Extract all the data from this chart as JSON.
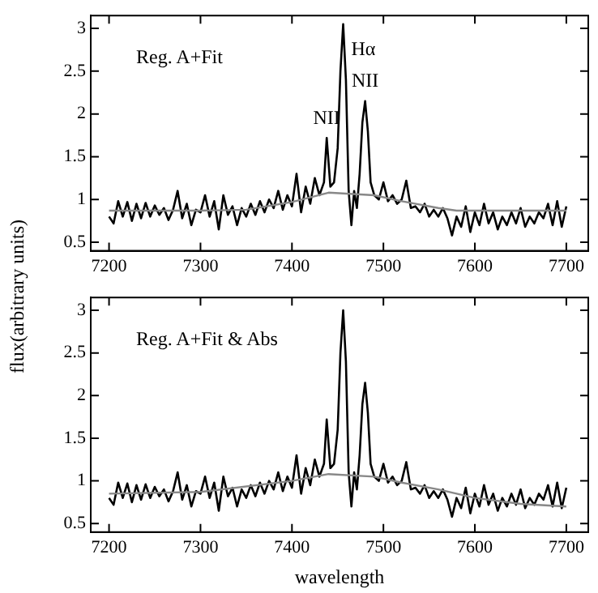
{
  "chart_data": [
    {
      "type": "line",
      "ylabel": "flux(arbitrary units)",
      "annotations": [
        "Reg. A+Fit",
        {
          "text": "Hα",
          "x": 7456,
          "y": 3.05
        },
        {
          "text": "NII",
          "x": 7438,
          "y": 1.72
        },
        {
          "text": "NII",
          "x": 7480,
          "y": 2.15
        }
      ],
      "xlim": [
        7180,
        7724
      ],
      "xticks": [
        7200,
        7300,
        7400,
        7500,
        7600,
        7700
      ],
      "ylim": [
        0.4,
        3.15
      ],
      "yticks": [
        0.5,
        1,
        1.5,
        2,
        2.5,
        3
      ],
      "grid": false,
      "legend": false,
      "marker": "none",
      "line_style": "solid",
      "series": [
        {
          "color": "#000000",
          "x": [
            7200,
            7205,
            7210,
            7215,
            7220,
            7225,
            7230,
            7235,
            7240,
            7245,
            7250,
            7255,
            7260,
            7265,
            7270,
            7275,
            7280,
            7285,
            7290,
            7295,
            7300,
            7305,
            7310,
            7315,
            7320,
            7325,
            7330,
            7335,
            7340,
            7345,
            7350,
            7355,
            7360,
            7365,
            7370,
            7375,
            7380,
            7385,
            7390,
            7395,
            7400,
            7405,
            7410,
            7415,
            7420,
            7425,
            7430,
            7435,
            7438,
            7442,
            7446,
            7450,
            7453,
            7456,
            7459,
            7462,
            7465,
            7468,
            7471,
            7474,
            7477,
            7480,
            7483,
            7486,
            7490,
            7495,
            7500,
            7505,
            7510,
            7515,
            7520,
            7525,
            7530,
            7535,
            7540,
            7545,
            7550,
            7555,
            7560,
            7565,
            7570,
            7575,
            7580,
            7585,
            7590,
            7595,
            7600,
            7605,
            7610,
            7615,
            7620,
            7625,
            7630,
            7635,
            7640,
            7645,
            7650,
            7655,
            7660,
            7665,
            7670,
            7675,
            7680,
            7685,
            7690,
            7695,
            7700
          ],
          "values": [
            0.8,
            0.72,
            0.98,
            0.8,
            0.97,
            0.75,
            0.95,
            0.78,
            0.96,
            0.8,
            0.93,
            0.82,
            0.9,
            0.76,
            0.88,
            1.1,
            0.78,
            0.95,
            0.7,
            0.88,
            0.85,
            1.05,
            0.8,
            0.98,
            0.65,
            1.05,
            0.82,
            0.92,
            0.7,
            0.9,
            0.8,
            0.95,
            0.82,
            0.98,
            0.85,
            1.0,
            0.9,
            1.1,
            0.88,
            1.05,
            0.92,
            1.3,
            0.85,
            1.15,
            0.95,
            1.25,
            1.05,
            1.2,
            1.72,
            1.15,
            1.2,
            1.6,
            2.5,
            3.05,
            2.4,
            1.1,
            0.7,
            1.1,
            0.9,
            1.3,
            1.9,
            2.15,
            1.8,
            1.2,
            1.05,
            1.0,
            1.2,
            0.98,
            1.05,
            0.95,
            1.0,
            1.22,
            0.9,
            0.92,
            0.85,
            0.95,
            0.8,
            0.88,
            0.8,
            0.9,
            0.78,
            0.58,
            0.8,
            0.68,
            0.92,
            0.62,
            0.85,
            0.7,
            0.95,
            0.72,
            0.85,
            0.65,
            0.8,
            0.7,
            0.85,
            0.72,
            0.9,
            0.68,
            0.8,
            0.72,
            0.85,
            0.78,
            0.95,
            0.7,
            0.98,
            0.68,
            0.92
          ]
        },
        {
          "color": "#888888",
          "x": [
            7200,
            7300,
            7350,
            7400,
            7440,
            7490,
            7520,
            7560,
            7580,
            7700
          ],
          "values": [
            0.87,
            0.87,
            0.88,
            0.97,
            1.08,
            1.05,
            0.98,
            0.9,
            0.87,
            0.87
          ]
        }
      ]
    },
    {
      "type": "line",
      "xlabel": "wavelength",
      "annotations": [
        "Reg. A+Fit & Abs"
      ],
      "xlim": [
        7180,
        7724
      ],
      "xticks": [
        7200,
        7300,
        7400,
        7500,
        7600,
        7700
      ],
      "ylim": [
        0.4,
        3.15
      ],
      "yticks": [
        0.5,
        1,
        1.5,
        2,
        2.5,
        3
      ],
      "grid": false,
      "legend": false,
      "marker": "none",
      "line_style": "solid",
      "series": [
        {
          "color": "#000000",
          "x": [
            7200,
            7205,
            7210,
            7215,
            7220,
            7225,
            7230,
            7235,
            7240,
            7245,
            7250,
            7255,
            7260,
            7265,
            7270,
            7275,
            7280,
            7285,
            7290,
            7295,
            7300,
            7305,
            7310,
            7315,
            7320,
            7325,
            7330,
            7335,
            7340,
            7345,
            7350,
            7355,
            7360,
            7365,
            7370,
            7375,
            7380,
            7385,
            7390,
            7395,
            7400,
            7405,
            7410,
            7415,
            7420,
            7425,
            7430,
            7435,
            7438,
            7442,
            7446,
            7450,
            7453,
            7456,
            7459,
            7462,
            7465,
            7468,
            7471,
            7474,
            7477,
            7480,
            7483,
            7486,
            7490,
            7495,
            7500,
            7505,
            7510,
            7515,
            7520,
            7525,
            7530,
            7535,
            7540,
            7545,
            7550,
            7555,
            7560,
            7565,
            7570,
            7575,
            7580,
            7585,
            7590,
            7595,
            7600,
            7605,
            7610,
            7615,
            7620,
            7625,
            7630,
            7635,
            7640,
            7645,
            7650,
            7655,
            7660,
            7665,
            7670,
            7675,
            7680,
            7685,
            7690,
            7695,
            7700
          ],
          "values": [
            0.8,
            0.72,
            0.98,
            0.8,
            0.97,
            0.75,
            0.95,
            0.78,
            0.96,
            0.8,
            0.93,
            0.82,
            0.9,
            0.76,
            0.88,
            1.1,
            0.78,
            0.95,
            0.7,
            0.88,
            0.85,
            1.05,
            0.8,
            0.98,
            0.65,
            1.05,
            0.82,
            0.92,
            0.7,
            0.9,
            0.8,
            0.95,
            0.82,
            0.98,
            0.85,
            1.0,
            0.9,
            1.1,
            0.88,
            1.05,
            0.92,
            1.3,
            0.85,
            1.15,
            0.95,
            1.25,
            1.05,
            1.2,
            1.72,
            1.15,
            1.2,
            1.6,
            2.5,
            3.0,
            2.4,
            1.1,
            0.7,
            1.1,
            0.9,
            1.3,
            1.9,
            2.15,
            1.8,
            1.2,
            1.05,
            1.0,
            1.2,
            0.98,
            1.05,
            0.95,
            1.0,
            1.22,
            0.9,
            0.92,
            0.85,
            0.95,
            0.8,
            0.88,
            0.8,
            0.9,
            0.78,
            0.58,
            0.8,
            0.68,
            0.92,
            0.62,
            0.85,
            0.7,
            0.95,
            0.72,
            0.85,
            0.65,
            0.8,
            0.7,
            0.85,
            0.72,
            0.9,
            0.68,
            0.8,
            0.72,
            0.85,
            0.78,
            0.95,
            0.7,
            0.98,
            0.68,
            0.92
          ]
        },
        {
          "color": "#888888",
          "x": [
            7200,
            7300,
            7400,
            7440,
            7490,
            7520,
            7560,
            7600,
            7650,
            7700
          ],
          "values": [
            0.85,
            0.87,
            1.0,
            1.08,
            1.05,
            0.98,
            0.9,
            0.8,
            0.73,
            0.7
          ]
        }
      ]
    }
  ]
}
